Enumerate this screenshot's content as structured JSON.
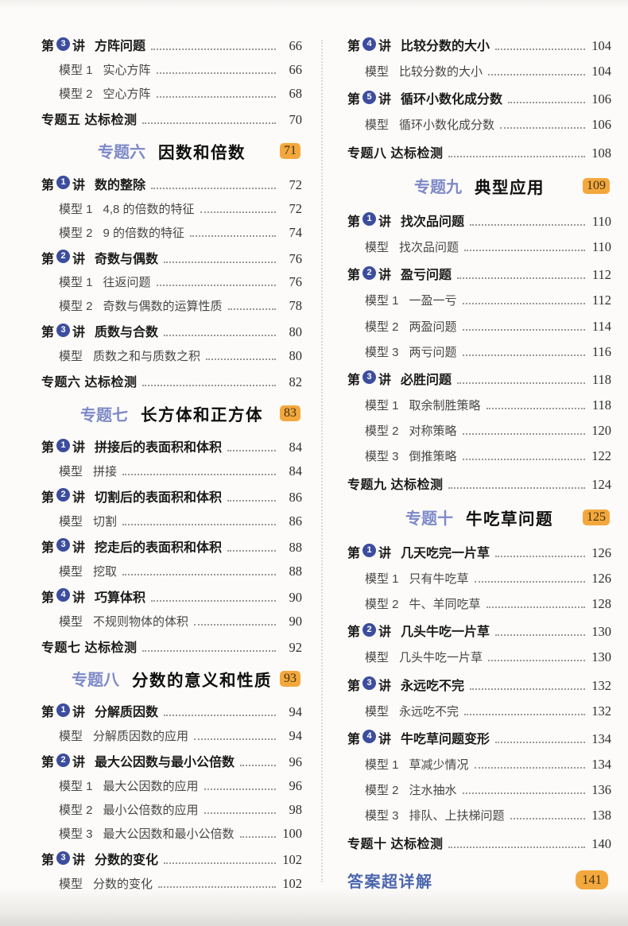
{
  "colors": {
    "badge_blue": "#3c4d9e",
    "chapter_blue": "#7d89c8",
    "pill_orange": "#f3a83d",
    "answer_blue": "#4b66ae"
  },
  "columns": [
    {
      "rows": [
        {
          "type": "lecture",
          "prefix": "第",
          "number": "3",
          "suffix": "讲",
          "title": "方阵问题",
          "page": "66"
        },
        {
          "type": "model",
          "label": "模型 1",
          "title": "实心方阵",
          "page": "66"
        },
        {
          "type": "model",
          "label": "模型 2",
          "title": "空心方阵",
          "page": "68"
        },
        {
          "type": "test",
          "label": "专题五 达标检测",
          "page": "70"
        },
        {
          "type": "chapter",
          "part": "专题六",
          "title": "因数和倍数",
          "page": "71"
        },
        {
          "type": "lecture",
          "prefix": "第",
          "number": "1",
          "suffix": "讲",
          "title": "数的整除",
          "page": "72"
        },
        {
          "type": "model",
          "label": "模型 1",
          "title": "4,8 的倍数的特征",
          "page": "72"
        },
        {
          "type": "model",
          "label": "模型 2",
          "title": "9 的倍数的特征",
          "page": "74"
        },
        {
          "type": "lecture",
          "prefix": "第",
          "number": "2",
          "suffix": "讲",
          "title": "奇数与偶数",
          "page": "76"
        },
        {
          "type": "model",
          "label": "模型 1",
          "title": "往返问题",
          "page": "76"
        },
        {
          "type": "model",
          "label": "模型 2",
          "title": "奇数与偶数的运算性质",
          "page": "78"
        },
        {
          "type": "lecture",
          "prefix": "第",
          "number": "3",
          "suffix": "讲",
          "title": "质数与合数",
          "page": "80"
        },
        {
          "type": "model",
          "label": "模型",
          "title": "质数之和与质数之积",
          "page": "80"
        },
        {
          "type": "test",
          "label": "专题六 达标检测",
          "page": "82"
        },
        {
          "type": "chapter",
          "part": "专题七",
          "title": "长方体和正方体",
          "page": "83"
        },
        {
          "type": "lecture",
          "prefix": "第",
          "number": "1",
          "suffix": "讲",
          "title": "拼接后的表面积和体积",
          "page": "84"
        },
        {
          "type": "model",
          "label": "模型",
          "title": "拼接",
          "page": "84"
        },
        {
          "type": "lecture",
          "prefix": "第",
          "number": "2",
          "suffix": "讲",
          "title": "切割后的表面积和体积",
          "page": "86"
        },
        {
          "type": "model",
          "label": "模型",
          "title": "切割",
          "page": "86"
        },
        {
          "type": "lecture",
          "prefix": "第",
          "number": "3",
          "suffix": "讲",
          "title": "挖走后的表面积和体积",
          "page": "88"
        },
        {
          "type": "model",
          "label": "模型",
          "title": "挖取",
          "page": "88"
        },
        {
          "type": "lecture",
          "prefix": "第",
          "number": "4",
          "suffix": "讲",
          "title": "巧算体积",
          "page": "90"
        },
        {
          "type": "model",
          "label": "模型",
          "title": "不规则物体的体积",
          "page": "90"
        },
        {
          "type": "test",
          "label": "专题七 达标检测",
          "page": "92"
        },
        {
          "type": "chapter",
          "part": "专题八",
          "title": "分数的意义和性质",
          "page": "93"
        },
        {
          "type": "lecture",
          "prefix": "第",
          "number": "1",
          "suffix": "讲",
          "title": "分解质因数",
          "page": "94"
        },
        {
          "type": "model",
          "label": "模型",
          "title": "分解质因数的应用",
          "page": "94"
        },
        {
          "type": "lecture",
          "prefix": "第",
          "number": "2",
          "suffix": "讲",
          "title": "最大公因数与最小公倍数",
          "page": "96"
        },
        {
          "type": "model",
          "label": "模型 1",
          "title": "最大公因数的应用",
          "page": "96"
        },
        {
          "type": "model",
          "label": "模型 2",
          "title": "最小公倍数的应用",
          "page": "98"
        },
        {
          "type": "model",
          "label": "模型 3",
          "title": "最大公因数和最小公倍数",
          "page": "100"
        },
        {
          "type": "lecture",
          "prefix": "第",
          "number": "3",
          "suffix": "讲",
          "title": "分数的变化",
          "page": "102"
        },
        {
          "type": "model",
          "label": "模型",
          "title": "分数的变化",
          "page": "102"
        }
      ]
    },
    {
      "rows": [
        {
          "type": "lecture",
          "prefix": "第",
          "number": "4",
          "suffix": "讲",
          "title": "比较分数的大小",
          "page": "104"
        },
        {
          "type": "model",
          "label": "模型",
          "title": "比较分数的大小",
          "page": "104"
        },
        {
          "type": "lecture",
          "prefix": "第",
          "number": "5",
          "suffix": "讲",
          "title": "循环小数化成分数",
          "page": "106"
        },
        {
          "type": "model",
          "label": "模型",
          "title": "循环小数化成分数",
          "page": "106"
        },
        {
          "type": "test",
          "label": "专题八 达标检测",
          "page": "108"
        },
        {
          "type": "chapter",
          "part": "专题九",
          "title": "典型应用",
          "page": "109"
        },
        {
          "type": "lecture",
          "prefix": "第",
          "number": "1",
          "suffix": "讲",
          "title": "找次品问题",
          "page": "110"
        },
        {
          "type": "model",
          "label": "模型",
          "title": "找次品问题",
          "page": "110"
        },
        {
          "type": "lecture",
          "prefix": "第",
          "number": "2",
          "suffix": "讲",
          "title": "盈亏问题",
          "page": "112"
        },
        {
          "type": "model",
          "label": "模型 1",
          "title": "一盈一亏",
          "page": "112"
        },
        {
          "type": "model",
          "label": "模型 2",
          "title": "两盈问题",
          "page": "114"
        },
        {
          "type": "model",
          "label": "模型 3",
          "title": "两亏问题",
          "page": "116"
        },
        {
          "type": "lecture",
          "prefix": "第",
          "number": "3",
          "suffix": "讲",
          "title": "必胜问题",
          "page": "118"
        },
        {
          "type": "model",
          "label": "模型 1",
          "title": "取余制胜策略",
          "page": "118"
        },
        {
          "type": "model",
          "label": "模型 2",
          "title": "对称策略",
          "page": "120"
        },
        {
          "type": "model",
          "label": "模型 3",
          "title": "倒推策略",
          "page": "122"
        },
        {
          "type": "test",
          "label": "专题九 达标检测",
          "page": "124"
        },
        {
          "type": "chapter",
          "part": "专题十",
          "title": "牛吃草问题",
          "page": "125"
        },
        {
          "type": "lecture",
          "prefix": "第",
          "number": "1",
          "suffix": "讲",
          "title": "几天吃完一片草",
          "page": "126"
        },
        {
          "type": "model",
          "label": "模型 1",
          "title": "只有牛吃草",
          "page": "126"
        },
        {
          "type": "model",
          "label": "模型 2",
          "title": "牛、羊同吃草",
          "page": "128"
        },
        {
          "type": "lecture",
          "prefix": "第",
          "number": "2",
          "suffix": "讲",
          "title": "几头牛吃一片草",
          "page": "130"
        },
        {
          "type": "model",
          "label": "模型",
          "title": "几头牛吃一片草",
          "page": "130"
        },
        {
          "type": "lecture",
          "prefix": "第",
          "number": "3",
          "suffix": "讲",
          "title": "永远吃不完",
          "page": "132"
        },
        {
          "type": "model",
          "label": "模型",
          "title": "永远吃不完",
          "page": "132"
        },
        {
          "type": "lecture",
          "prefix": "第",
          "number": "4",
          "suffix": "讲",
          "title": "牛吃草问题变形",
          "page": "134"
        },
        {
          "type": "model",
          "label": "模型 1",
          "title": "草减少情况",
          "page": "134"
        },
        {
          "type": "model",
          "label": "模型 2",
          "title": "注水抽水",
          "page": "136"
        },
        {
          "type": "model",
          "label": "模型 3",
          "title": "排队、上扶梯问题",
          "page": "138"
        },
        {
          "type": "test",
          "label": "专题十 达标检测",
          "page": "140"
        },
        {
          "type": "answer",
          "title": "答案超详解",
          "page": "141"
        }
      ]
    }
  ]
}
